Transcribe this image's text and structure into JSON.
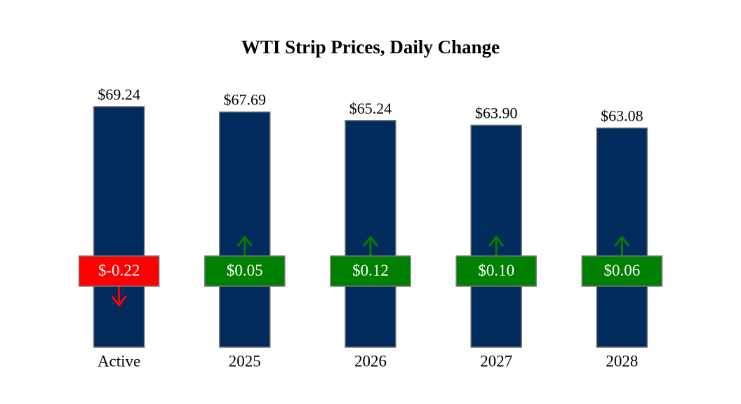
{
  "chart_data": {
    "type": "bar",
    "title": "WTI Strip Prices, Daily Change",
    "categories": [
      "Active",
      "2025",
      "2026",
      "2027",
      "2028"
    ],
    "series": [
      {
        "color": "#002b5c",
        "values": [
          69.24,
          67.69,
          65.24,
          63.9,
          63.08
        ],
        "value_labels": [
          "$69.24",
          "$67.69",
          "$65.24",
          "$63.90",
          "$63.08"
        ]
      }
    ],
    "changes": {
      "values": [
        -0.22,
        0.05,
        0.12,
        0.1,
        0.06
      ],
      "value_labels": [
        "$-0.22",
        "$0.05",
        "$0.12",
        "$0.10",
        "$0.06"
      ],
      "up_color": "#008000",
      "down_color": "#ff0000"
    }
  }
}
